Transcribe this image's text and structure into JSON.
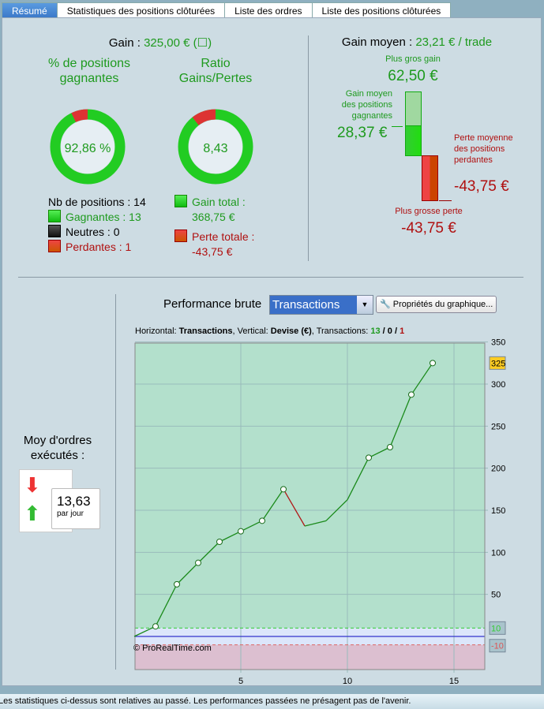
{
  "tabs": [
    "Résumé",
    "Statistiques des positions clôturées",
    "Liste des ordres",
    "Liste des positions clôturées"
  ],
  "gain": {
    "label": "Gain :",
    "value": "325,00 € (☐)"
  },
  "pct": {
    "title": "% de positions gagnantes",
    "value": "92,86 %",
    "fraction_loss": 0.0714
  },
  "ratio": {
    "title": "Ratio Gains/Pertes",
    "value": "8,43",
    "fraction_loss": 0.106
  },
  "positions": {
    "total": "Nb de positions : 14",
    "win": "Gagnantes : 13",
    "neutral": "Neutres : 0",
    "loss": "Perdantes : 1"
  },
  "totals": {
    "gain_label": "Gain total :",
    "gain_value": "368,75 €",
    "loss_label": "Perte totale :",
    "loss_value": "-43,75 €"
  },
  "avg": {
    "label": "Gain moyen :",
    "value": "23,21 € / trade",
    "best_label": "Plus gros gain",
    "best_value": "62,50 €",
    "avg_win_label": "Gain moyen des positions gagnantes",
    "avg_win_value": "28,37 €",
    "avg_loss_label": "Perte moyenne des positions perdantes",
    "avg_loss_value": "-43,75 €",
    "worst_label": "Plus grosse perte",
    "worst_value": "-43,75 €"
  },
  "orders": {
    "label": "Moy d'ordres exécutés :",
    "value": "13,63",
    "unit": "par jour"
  },
  "perf": {
    "label": "Performance brute",
    "select": "Transactions",
    "props_button": "Propriétés du graphique..."
  },
  "chart_info": {
    "h": "Horizontal: ",
    "h_val": "Transactions",
    "v": ", Vertical: ",
    "v_val": "Devise (€)",
    "t": ", Transactions: ",
    "win": "13",
    "neutral": "0",
    "loss": "1",
    "sep": " / "
  },
  "copyright": "© ProRealTime.com",
  "status": "Les statistiques ci-dessus sont relatives au passé. Les performances passées ne présagent pas de l'avenir.",
  "chart_data": {
    "type": "line",
    "x": [
      0,
      1,
      2,
      3,
      4,
      5,
      6,
      7,
      8,
      9,
      10,
      11,
      12,
      13,
      14
    ],
    "y": [
      0,
      12,
      62,
      87.5,
      112.5,
      125,
      137.5,
      175,
      131.25,
      137.5,
      162.5,
      212.5,
      225,
      287.5,
      325
    ],
    "markers": [
      1,
      2,
      3,
      4,
      5,
      6,
      7,
      11,
      12,
      13,
      14
    ],
    "losing_segments": [
      [
        7,
        8
      ]
    ],
    "xlim": [
      0,
      16.5
    ],
    "ylim": [
      -30,
      360
    ],
    "xticks": [
      "5",
      "10",
      "15"
    ],
    "xtick_values": [
      5,
      10,
      15
    ],
    "yticks": [
      "50",
      "100",
      "150",
      "200",
      "250",
      "300",
      "350"
    ],
    "ytick_values": [
      50,
      100,
      150,
      200,
      250,
      300,
      350
    ],
    "last_label": "325",
    "upper_band": "10",
    "lower_band": "-10",
    "upper_band_value": 10,
    "lower_band_value": -10
  }
}
